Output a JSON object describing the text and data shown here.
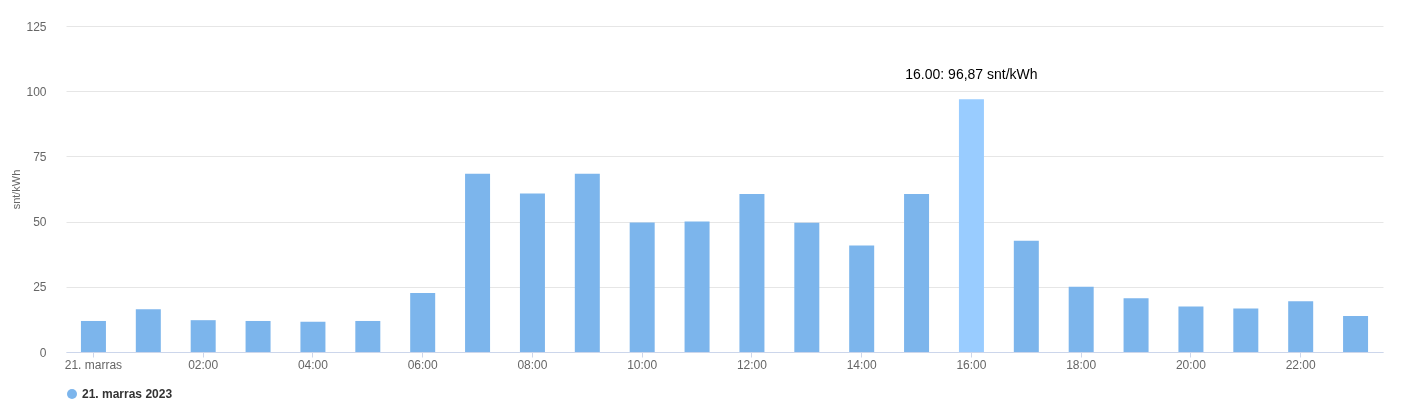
{
  "chart_data": {
    "type": "bar",
    "ylabel": "snt/kWh",
    "categories": [
      "21. marras",
      null,
      "02:00",
      null,
      "04:00",
      null,
      "06:00",
      null,
      "08:00",
      null,
      "10:00",
      null,
      "12:00",
      null,
      "14:00",
      null,
      "16:00",
      null,
      "18:00",
      null,
      "20:00",
      null,
      "22:00",
      null
    ],
    "series": [
      {
        "name": "21. marras 2023",
        "color": "#7cb5ec",
        "values": [
          11.9,
          16.4,
          12.2,
          11.9,
          11.6,
          11.9,
          22.6,
          68.3,
          60.8,
          68.3,
          49.7,
          50.0,
          60.6,
          49.6,
          40.8,
          60.6,
          96.87,
          42.7,
          25.0,
          20.6,
          17.4,
          16.7,
          19.5,
          13.8
        ],
        "colors": [
          "#7cb5ec",
          "#7cb5ec",
          "#7cb5ec",
          "#7cb5ec",
          "#7cb5ec",
          "#7cb5ec",
          "#7cb5ec",
          "#7cb5ec",
          "#7cb5ec",
          "#7cb5ec",
          "#7cb5ec",
          "#7cb5ec",
          "#7cb5ec",
          "#7cb5ec",
          "#7cb5ec",
          "#7cb5ec",
          "#99ccff",
          "#7cb5ec",
          "#7cb5ec",
          "#7cb5ec",
          "#7cb5ec",
          "#7cb5ec",
          "#7cb5ec",
          "#7cb5ec"
        ]
      }
    ],
    "ylim": [
      0,
      125
    ],
    "yticks": [
      0,
      25,
      50,
      75,
      100,
      125
    ],
    "grid": "y",
    "legend": "bottom",
    "annotations": [
      {
        "text": "16.00: 96,87 snt/kWh",
        "x": "16:00",
        "y": 96.87
      }
    ]
  }
}
